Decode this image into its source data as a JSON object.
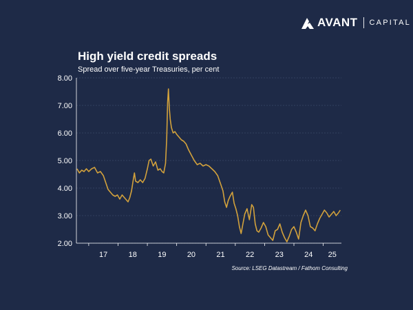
{
  "brand": {
    "name": "AVANT",
    "suffix": "CAPITAL",
    "mark_icon": "avant-mountain-logo-icon"
  },
  "colors": {
    "background": "#1e2a47",
    "line": "#d3a23c",
    "grid": "#3a4868",
    "text": "#ffffff"
  },
  "chart_data": {
    "type": "line",
    "title": "High yield credit spreads",
    "subtitle": "Spread over five-year Treasuries, per cent",
    "source": "Source: LSEG Datastream / Fathom Consulting",
    "xlabel": "",
    "ylabel": "",
    "x_axis_type": "year (2-digit labels)",
    "xlim": [
      2016.58,
      2025.62
    ],
    "ylim": [
      2.0,
      8.0
    ],
    "y_ticks": [
      "8.00",
      "7.00",
      "6.00",
      "5.00",
      "4.00",
      "3.00",
      "2.00"
    ],
    "x_ticks": [
      "17",
      "18",
      "19",
      "20",
      "21",
      "22",
      "23",
      "24",
      "25"
    ],
    "grid": "horizontal, dashed",
    "legend": "none",
    "series": [
      {
        "x": [
          2016.6,
          2016.68,
          2016.76,
          2016.84,
          2016.92,
          2017.0,
          2017.1,
          2017.2,
          2017.3,
          2017.4,
          2017.5,
          2017.58,
          2017.66,
          2017.74,
          2017.82,
          2017.9,
          2017.98,
          2018.06,
          2018.14,
          2018.22,
          2018.3,
          2018.34,
          2018.4,
          2018.46,
          2018.52,
          2018.56,
          2018.6,
          2018.68,
          2018.76,
          2018.84,
          2018.92,
          2019.0,
          2019.06,
          2019.12,
          2019.2,
          2019.28,
          2019.36,
          2019.44,
          2019.5,
          2019.56,
          2019.62,
          2019.66,
          2019.69,
          2019.72,
          2019.75,
          2019.78,
          2019.82,
          2019.88,
          2019.94,
          2020.0,
          2020.08,
          2020.16,
          2020.24,
          2020.32,
          2020.4,
          2020.5,
          2020.6,
          2020.7,
          2020.8,
          2020.9,
          2021.0,
          2021.1,
          2021.2,
          2021.3,
          2021.4,
          2021.5,
          2021.58,
          2021.64,
          2021.7,
          2021.76,
          2021.82,
          2021.9,
          2021.96,
          2022.02,
          2022.08,
          2022.14,
          2022.2,
          2022.26,
          2022.32,
          2022.4,
          2022.48,
          2022.56,
          2022.62,
          2022.68,
          2022.74,
          2022.8,
          2022.88,
          2022.96,
          2023.04,
          2023.12,
          2023.2,
          2023.28,
          2023.36,
          2023.44,
          2023.52,
          2023.6,
          2023.68,
          2023.76,
          2023.84,
          2023.92,
          2024.0,
          2024.08,
          2024.16,
          2024.24,
          2024.32,
          2024.4,
          2024.48,
          2024.56,
          2024.64,
          2024.72,
          2024.8,
          2024.88,
          2024.96,
          2025.04,
          2025.12,
          2025.2,
          2025.28,
          2025.36,
          2025.44,
          2025.52,
          2025.58
        ],
        "values": [
          4.7,
          4.55,
          4.65,
          4.6,
          4.7,
          4.6,
          4.7,
          4.75,
          4.55,
          4.6,
          4.45,
          4.2,
          3.95,
          3.85,
          3.75,
          3.7,
          3.75,
          3.6,
          3.75,
          3.65,
          3.55,
          3.5,
          3.65,
          3.9,
          4.3,
          4.55,
          4.25,
          4.2,
          4.3,
          4.2,
          4.35,
          4.7,
          5.0,
          5.05,
          4.8,
          4.95,
          4.65,
          4.7,
          4.6,
          4.55,
          4.9,
          5.8,
          7.1,
          7.6,
          6.9,
          6.5,
          6.2,
          6.0,
          6.05,
          5.95,
          5.85,
          5.75,
          5.7,
          5.6,
          5.4,
          5.2,
          5.0,
          4.85,
          4.9,
          4.8,
          4.85,
          4.8,
          4.7,
          4.6,
          4.45,
          4.15,
          3.9,
          3.5,
          3.3,
          3.55,
          3.7,
          3.85,
          3.45,
          3.25,
          3.0,
          2.6,
          2.35,
          2.7,
          3.05,
          3.25,
          2.85,
          3.4,
          3.3,
          2.7,
          2.45,
          2.4,
          2.55,
          2.75,
          2.6,
          2.3,
          2.2,
          2.1,
          2.45,
          2.5,
          2.7,
          2.4,
          2.2,
          2.05,
          2.25,
          2.5,
          2.6,
          2.4,
          2.15,
          2.75,
          3.0,
          3.2,
          3.0,
          2.6,
          2.55,
          2.45,
          2.7,
          2.9,
          3.05,
          3.2,
          3.1,
          2.95,
          3.05,
          3.15,
          3.0,
          3.1,
          3.2
        ]
      }
    ]
  }
}
